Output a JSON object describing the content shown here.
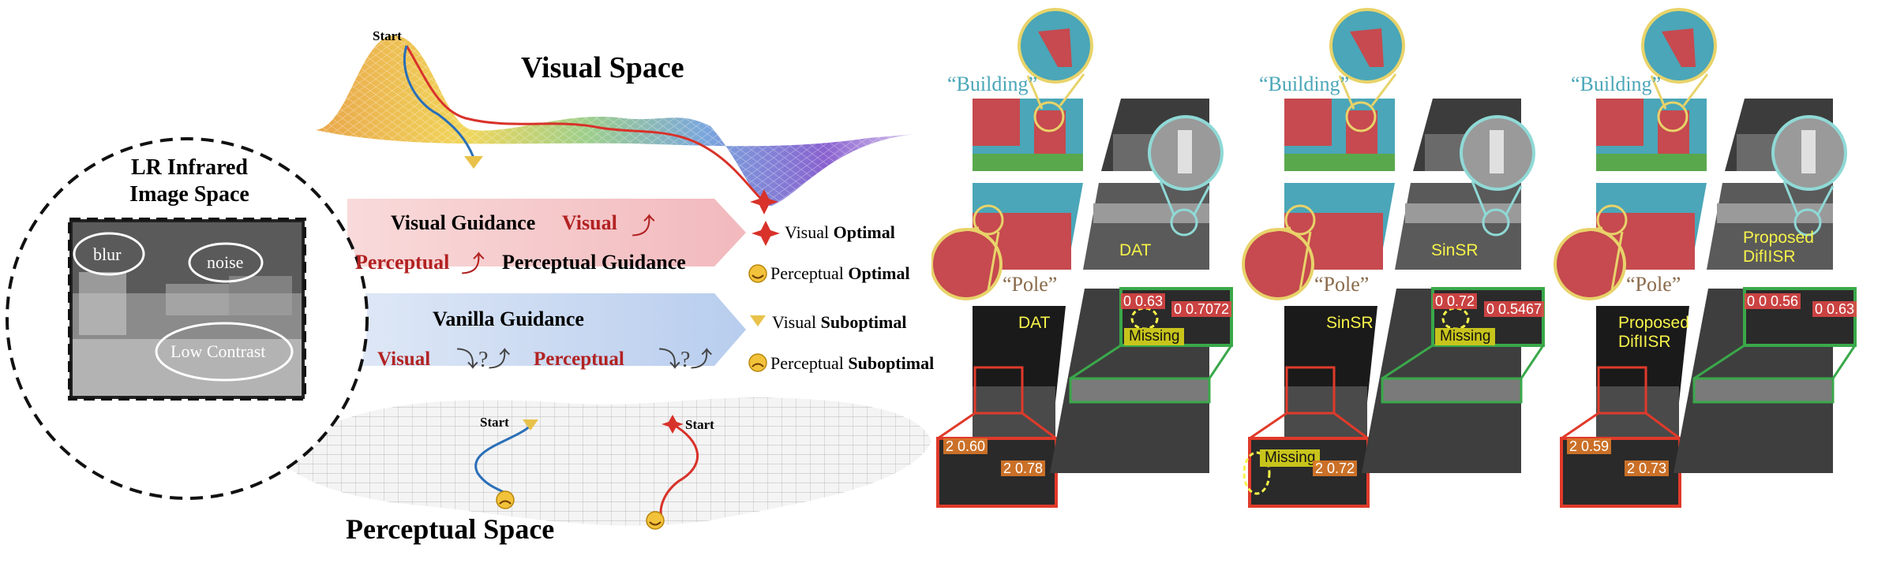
{
  "left": {
    "visual_space_title": "Visual Space",
    "perceptual_space_title": "Perceptual Space",
    "start_label": "Start",
    "lr_circle_title_line1": "LR Infrared",
    "lr_circle_title_line2": "Image Space",
    "blur_label": "blur",
    "noise_label": "noise",
    "low_contrast_label": "Low Contrast",
    "red_arrow": {
      "visual_guidance": "Visual Guidance",
      "visual": "Visual",
      "perceptual": "Perceptual",
      "perceptual_guidance": "Perceptual Guidance"
    },
    "blue_arrow": {
      "vanilla_guidance": "Vanilla Guidance",
      "visual": "Visual",
      "perceptual": "Perceptual"
    },
    "legend": {
      "visual_optimal_prefix": "Visual ",
      "visual_optimal_bold": "Optimal",
      "perceptual_optimal_prefix": "Perceptual ",
      "perceptual_optimal_bold": "Optimal",
      "visual_suboptimal_prefix": "Visual ",
      "visual_suboptimal_bold": "Suboptimal",
      "perceptual_suboptimal_prefix": "Perceptual ",
      "perceptual_suboptimal_bold": "Suboptimal"
    },
    "colors": {
      "red": "#b22222",
      "blue": "#2a6fb8",
      "gold": "#e8c24a"
    }
  },
  "right": {
    "building_label": "Building",
    "pole_label": "Pole",
    "missing_label": "Missing",
    "panels": [
      {
        "method": "DAT",
        "method_line2": "",
        "det_top_a": "0 0.63",
        "det_top_b": "0 0.7072",
        "det_bot_a": "2 0.60",
        "det_bot_b": "2 0.78",
        "missing_top": true,
        "missing_bottom": false
      },
      {
        "method": "SinSR",
        "method_line2": "",
        "det_top_a": "0 0.72",
        "det_top_b": "0 0.5467",
        "det_bot_a": "",
        "det_bot_b": "2 0.72",
        "missing_top": true,
        "missing_bottom": true
      },
      {
        "method": "Proposed",
        "method_line2": "DifIISR",
        "det_top_a": "0 0 0.56",
        "det_top_b": "0 0.63",
        "det_bot_a": "2 0.59",
        "det_bot_b": "2 0.73",
        "missing_top": false,
        "missing_bottom": false
      }
    ],
    "colors": {
      "seg_teal": "#4aa6b8",
      "seg_red": "#c64a4f",
      "seg_green": "#5aa84c",
      "zoom_yellow": "#e8d36a",
      "zoom_cyan": "#8fd9d6",
      "box_red": "#e03a2a",
      "box_green": "#3aa84a",
      "text_yellow": "#f6f34a"
    }
  }
}
